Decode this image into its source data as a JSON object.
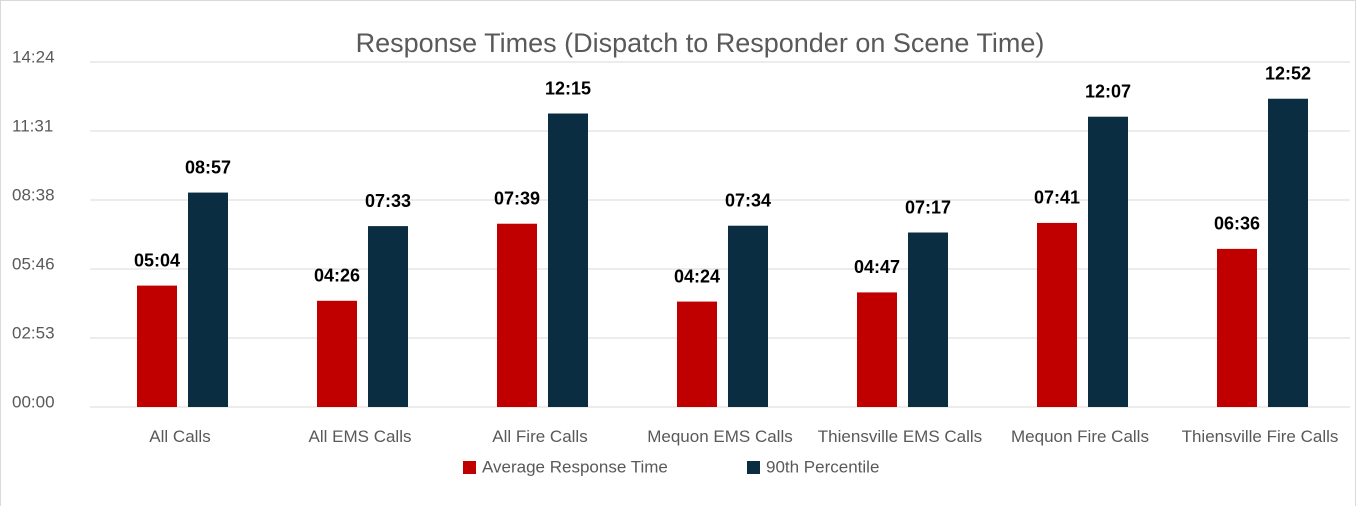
{
  "chart_data": {
    "type": "bar",
    "title": "Response Times (Dispatch to Responder on Scene Time)",
    "categories": [
      "All Calls",
      "All EMS Calls",
      "All Fire Calls",
      "Mequon EMS Calls",
      "Thiensville EMS Calls",
      "Mequon Fire Calls",
      "Thiensville Fire Calls"
    ],
    "series": [
      {
        "name": "Average Response Time",
        "color": "#c00000",
        "values": [
          304,
          266,
          459,
          264,
          287,
          461,
          396
        ],
        "value_labels": [
          "05:04",
          "04:26",
          "07:39",
          "04:24",
          "04:47",
          "07:41",
          "06:36"
        ]
      },
      {
        "name": "90th Percentile",
        "color": "#0b2d42",
        "values": [
          537,
          453,
          735,
          454,
          437,
          727,
          772
        ],
        "value_labels": [
          "08:57",
          "07:33",
          "12:15",
          "07:34",
          "07:17",
          "12:07",
          "12:52"
        ]
      }
    ],
    "ylim": [
      0,
      864
    ],
    "yticks": [
      {
        "value": 0,
        "label": "00:00"
      },
      {
        "value": 172.8,
        "label": "02:53"
      },
      {
        "value": 345.6,
        "label": "05:46"
      },
      {
        "value": 518.4,
        "label": "08:38"
      },
      {
        "value": 691.2,
        "label": "11:31"
      },
      {
        "value": 864,
        "label": "14:24"
      }
    ],
    "grid": true,
    "legend": "bottom"
  }
}
